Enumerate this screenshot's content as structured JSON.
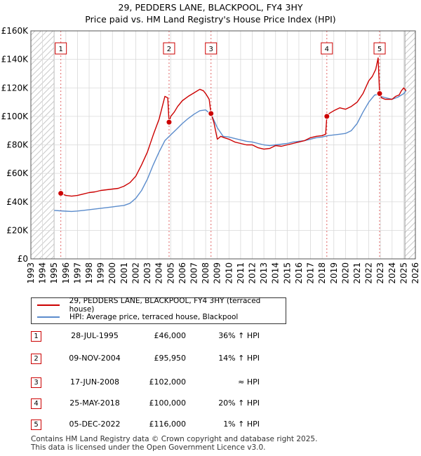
{
  "header": {
    "line1": "29, PEDDERS LANE, BLACKPOOL, FY4 3HY",
    "line2": "Price paid vs. HM Land Registry's House Price Index (HPI)"
  },
  "chart_data": {
    "type": "line",
    "xlim": [
      1993,
      2026
    ],
    "ylim": [
      0,
      160000
    ],
    "x_ticks": [
      1993,
      1994,
      1995,
      1996,
      1997,
      1998,
      1999,
      2000,
      2001,
      2002,
      2003,
      2004,
      2005,
      2006,
      2007,
      2008,
      2009,
      2010,
      2011,
      2012,
      2013,
      2014,
      2015,
      2016,
      2017,
      2018,
      2019,
      2020,
      2021,
      2022,
      2023,
      2024,
      2025,
      2026
    ],
    "y_ticks": [
      {
        "value": 0,
        "label": "£0"
      },
      {
        "value": 20000,
        "label": "£20K"
      },
      {
        "value": 40000,
        "label": "£40K"
      },
      {
        "value": 60000,
        "label": "£60K"
      },
      {
        "value": 80000,
        "label": "£80K"
      },
      {
        "value": 100000,
        "label": "£100K"
      },
      {
        "value": 120000,
        "label": "£120K"
      },
      {
        "value": 140000,
        "label": "£140K"
      },
      {
        "value": 160000,
        "label": "£160K"
      }
    ],
    "hatched_ranges": [
      [
        1993,
        1995.0
      ],
      [
        2025.1,
        2026
      ]
    ],
    "grid": true,
    "series": [
      {
        "name": "29, PEDDERS LANE, BLACKPOOL, FY4 3HY (terraced house)",
        "color": "#cc0000",
        "x": [
          1995.57,
          1996.0,
          1996.5,
          1997.0,
          1997.5,
          1998.0,
          1998.5,
          1999.0,
          1999.5,
          2000.0,
          2000.5,
          2001.0,
          2001.5,
          2002.0,
          2002.5,
          2003.0,
          2003.5,
          2004.0,
          2004.5,
          2004.75,
          2004.86,
          2005.0,
          2005.3,
          2005.6,
          2006.0,
          2006.5,
          2007.0,
          2007.5,
          2007.8,
          2008.0,
          2008.3,
          2008.46,
          2008.7,
          2009.0,
          2009.3,
          2009.6,
          2010.0,
          2010.5,
          2011.0,
          2011.5,
          2012.0,
          2012.5,
          2013.0,
          2013.5,
          2014.0,
          2014.5,
          2015.0,
          2015.5,
          2016.0,
          2016.5,
          2017.0,
          2017.5,
          2018.0,
          2018.3,
          2018.4,
          2018.6,
          2019.0,
          2019.5,
          2020.0,
          2020.5,
          2021.0,
          2021.5,
          2022.0,
          2022.3,
          2022.6,
          2022.8,
          2022.93,
          2023.1,
          2023.4,
          2023.7,
          2024.0,
          2024.3,
          2024.6,
          2024.8,
          2025.0,
          2025.2
        ],
        "values": [
          46000,
          44500,
          44000,
          44500,
          45500,
          46500,
          47000,
          48000,
          48500,
          49000,
          49500,
          51000,
          53500,
          58000,
          66000,
          75000,
          87000,
          98000,
          114000,
          113000,
          95950,
          100000,
          103000,
          107000,
          111000,
          114000,
          116500,
          119000,
          118000,
          116000,
          112000,
          102000,
          96000,
          84000,
          86000,
          85000,
          84000,
          82000,
          81000,
          80000,
          80000,
          78000,
          77000,
          77500,
          79500,
          79000,
          80000,
          81000,
          82000,
          83000,
          85000,
          86000,
          86500,
          87500,
          100000,
          102000,
          104000,
          106000,
          105000,
          107000,
          110000,
          116000,
          125000,
          128000,
          133000,
          141000,
          116000,
          113000,
          112000,
          112000,
          112000,
          114000,
          115000,
          118000,
          120000,
          118000
        ]
      },
      {
        "name": "HPI: Average price, terraced house, Blackpool",
        "color": "#5b8ccc",
        "x": [
          1995.0,
          1995.5,
          1996.0,
          1996.5,
          1997.0,
          1997.5,
          1998.0,
          1998.5,
          1999.0,
          1999.5,
          2000.0,
          2000.5,
          2001.0,
          2001.5,
          2002.0,
          2002.5,
          2003.0,
          2003.5,
          2004.0,
          2004.5,
          2005.0,
          2005.5,
          2006.0,
          2006.5,
          2007.0,
          2007.5,
          2008.0,
          2008.5,
          2009.0,
          2009.5,
          2010.0,
          2010.5,
          2011.0,
          2011.5,
          2012.0,
          2012.5,
          2013.0,
          2013.5,
          2014.0,
          2014.5,
          2015.0,
          2015.5,
          2016.0,
          2016.5,
          2017.0,
          2017.5,
          2018.0,
          2018.5,
          2019.0,
          2019.5,
          2020.0,
          2020.5,
          2021.0,
          2021.5,
          2022.0,
          2022.5,
          2022.9,
          2023.0,
          2023.5,
          2024.0,
          2024.5,
          2025.0,
          2025.2
        ],
        "values": [
          34000,
          33700,
          33500,
          33300,
          33600,
          34000,
          34500,
          35000,
          35500,
          36000,
          36500,
          37000,
          37500,
          39000,
          42500,
          48000,
          56000,
          66000,
          75000,
          83000,
          87000,
          91000,
          95000,
          98500,
          101500,
          104000,
          104500,
          101000,
          92000,
          86000,
          85500,
          84500,
          83500,
          82500,
          82000,
          81000,
          80000,
          79500,
          80000,
          80500,
          81000,
          82000,
          82500,
          83000,
          84000,
          85000,
          85500,
          86500,
          87000,
          87500,
          88000,
          90000,
          95000,
          103000,
          110000,
          115000,
          115500,
          114000,
          113000,
          112000,
          113500,
          116000,
          118000
        ]
      }
    ],
    "sales": [
      {
        "num": "1",
        "x": 1995.57,
        "value": 46000
      },
      {
        "num": "2",
        "x": 2004.86,
        "value": 95950
      },
      {
        "num": "3",
        "x": 2008.46,
        "value": 102000
      },
      {
        "num": "4",
        "x": 2018.4,
        "value": 100000
      },
      {
        "num": "5",
        "x": 2022.93,
        "value": 116000
      }
    ]
  },
  "legend": {
    "property_label": "29, PEDDERS LANE, BLACKPOOL, FY4 3HY (terraced house)",
    "hpi_label": "HPI: Average price, terraced house, Blackpool",
    "property_color": "#cc0000",
    "hpi_color": "#5b8ccc"
  },
  "transactions": [
    {
      "num": "1",
      "date": "28-JUL-1995",
      "price": "£46,000",
      "hpi": "36% ↑ HPI"
    },
    {
      "num": "2",
      "date": "09-NOV-2004",
      "price": "£95,950",
      "hpi": "14% ↑ HPI"
    },
    {
      "num": "3",
      "date": "17-JUN-2008",
      "price": "£102,000",
      "hpi": "≈ HPI"
    },
    {
      "num": "4",
      "date": "25-MAY-2018",
      "price": "£100,000",
      "hpi": "20% ↑ HPI"
    },
    {
      "num": "5",
      "date": "05-DEC-2022",
      "price": "£116,000",
      "hpi": "1% ↑ HPI"
    }
  ],
  "footer": {
    "line1": "Contains HM Land Registry data © Crown copyright and database right 2025.",
    "line2": "This data is licensed under the Open Government Licence v3.0."
  }
}
